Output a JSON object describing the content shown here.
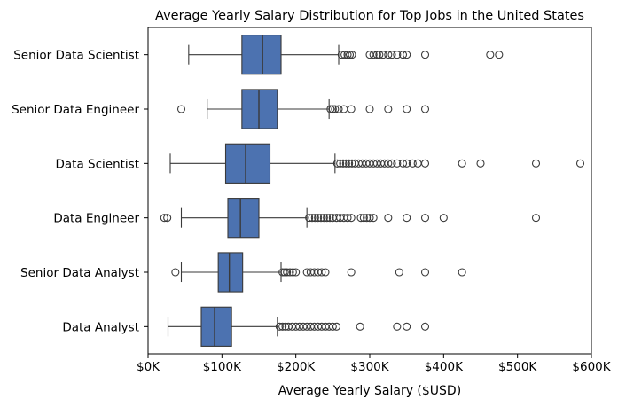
{
  "colors": {
    "box_fill": "#4c72b0",
    "line": "#3a3a3a",
    "axis": "#000000",
    "outlier_stroke": "#3a3a3a"
  },
  "chart_data": {
    "type": "boxplot",
    "orientation": "horizontal",
    "title": "Average Yearly Salary Distribution for Top Jobs in the United States",
    "xlabel": "Average Yearly Salary ($USD)",
    "ylabel": "",
    "xlim": [
      0,
      600000
    ],
    "x_tick_values": [
      0,
      100000,
      200000,
      300000,
      400000,
      500000,
      600000
    ],
    "x_tick_labels": [
      "$0K",
      "$100K",
      "$200K",
      "$300K",
      "$400K",
      "$500K",
      "$600K"
    ],
    "grid": false,
    "legend": "none",
    "categories": [
      "Senior Data Scientist",
      "Senior Data Engineer",
      "Data Scientist",
      "Data Engineer",
      "Senior Data Analyst",
      "Data Analyst"
    ],
    "boxes": [
      {
        "category": "Senior Data Scientist",
        "whisker_low": 55000,
        "q1": 127000,
        "median": 155000,
        "q3": 180000,
        "whisker_high": 258000,
        "outliers": [
          262000,
          266000,
          270000,
          273000,
          276000,
          300000,
          305000,
          310000,
          313000,
          318000,
          325000,
          330000,
          337000,
          345000,
          350000,
          375000,
          463000,
          475000
        ]
      },
      {
        "category": "Senior Data Engineer",
        "whisker_low": 80000,
        "q1": 127000,
        "median": 150000,
        "q3": 175000,
        "whisker_high": 245000,
        "outliers": [
          45000,
          247000,
          250000,
          253000,
          258000,
          265000,
          275000,
          300000,
          325000,
          350000,
          375000
        ]
      },
      {
        "category": "Data Scientist",
        "whisker_low": 30000,
        "q1": 105000,
        "median": 132000,
        "q3": 165000,
        "whisker_high": 253000,
        "outliers": [
          256000,
          260000,
          264000,
          268000,
          272000,
          276000,
          280000,
          285000,
          290000,
          295000,
          300000,
          305000,
          310000,
          315000,
          320000,
          325000,
          330000,
          337000,
          345000,
          350000,
          358000,
          365000,
          375000,
          425000,
          450000,
          525000,
          585000
        ]
      },
      {
        "category": "Data Engineer",
        "whisker_low": 45000,
        "q1": 108000,
        "median": 125000,
        "q3": 150000,
        "whisker_high": 215000,
        "outliers": [
          22000,
          26000,
          218000,
          222000,
          226000,
          230000,
          234000,
          238000,
          242000,
          246000,
          250000,
          255000,
          260000,
          265000,
          270000,
          275000,
          288000,
          292000,
          296000,
          300000,
          305000,
          325000,
          350000,
          375000,
          400000,
          525000
        ]
      },
      {
        "category": "Senior Data Analyst",
        "whisker_low": 45000,
        "q1": 95000,
        "median": 110000,
        "q3": 128000,
        "whisker_high": 180000,
        "outliers": [
          37000,
          182000,
          185000,
          188000,
          192000,
          196000,
          200000,
          215000,
          220000,
          225000,
          230000,
          235000,
          240000,
          275000,
          340000,
          375000,
          425000
        ]
      },
      {
        "category": "Data Analyst",
        "whisker_low": 27000,
        "q1": 72000,
        "median": 90000,
        "q3": 113000,
        "whisker_high": 175000,
        "outliers": [
          178000,
          182000,
          186000,
          190000,
          195000,
          200000,
          205000,
          210000,
          215000,
          220000,
          225000,
          230000,
          235000,
          240000,
          245000,
          250000,
          255000,
          287000,
          337000,
          350000,
          375000
        ]
      }
    ]
  }
}
